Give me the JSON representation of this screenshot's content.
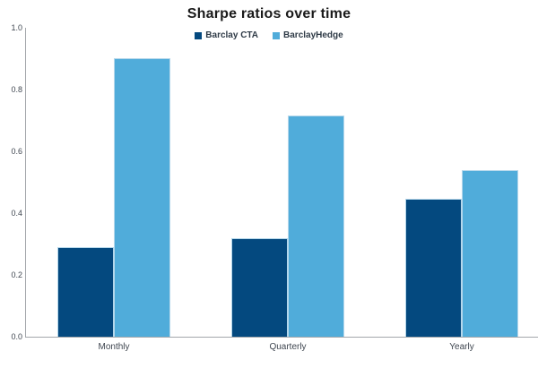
{
  "title": "Sharpe ratios over time",
  "chart_data": {
    "type": "bar",
    "title": "Sharpe ratios over time",
    "categories": [
      "Monthly",
      "Quarterly",
      "Yearly"
    ],
    "series": [
      {
        "name": "Barclay CTA",
        "color": "#04497f",
        "values": [
          0.29,
          0.32,
          0.445
        ]
      },
      {
        "name": "BarclayHedge",
        "color": "#50acda",
        "values": [
          0.9,
          0.715,
          0.54
        ]
      }
    ],
    "xlabel": "",
    "ylabel": "",
    "ylim": [
      0.0,
      1.0
    ],
    "yticks": [
      0.0,
      0.2,
      0.4,
      0.6,
      0.8,
      1.0
    ],
    "ytick_labels": [
      "0.0",
      "0.2",
      "0.4",
      "0.6",
      "0.8",
      "1.0"
    ],
    "grid": false,
    "legend_position": "top-center",
    "legend_entries": [
      "Barclay CTA",
      "BarclayHedge"
    ]
  },
  "colors": {
    "background": "#ffffff",
    "axis_line": "#a3a7ab",
    "tick_label": "#3f4650",
    "title_text": "#1a1a1a",
    "legend_text": "#2e3a46",
    "bar_border": "#b5d7eb"
  }
}
